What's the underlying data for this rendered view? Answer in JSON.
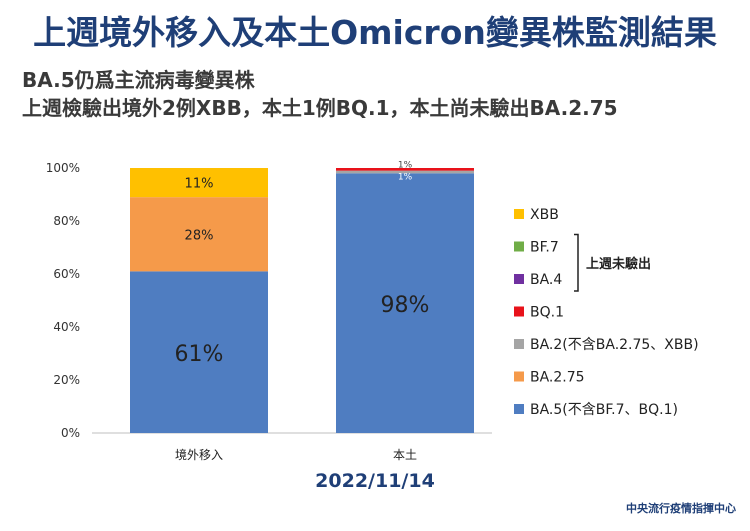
{
  "title": "上週境外移入及本土Omicron變異株監測結果",
  "subtitle_lines": [
    "BA.5仍爲主流病毒變異株",
    "上週檢驗出境外2例XBB，本土1例BQ.1，本土尚未驗出BA.2.75"
  ],
  "footer": {
    "date": "2022/11/14",
    "org": "中央流行疫情指揮中心"
  },
  "chart_data": {
    "type": "bar",
    "stacked": true,
    "categories": [
      "境外移入",
      "本土"
    ],
    "ylim": [
      0,
      100
    ],
    "yticks": [
      "0%",
      "20%",
      "40%",
      "60%",
      "80%",
      "100%"
    ],
    "series": [
      {
        "name": "BA.5(不含BF.7、BQ.1)",
        "color": "#4f7dc1",
        "values": [
          61,
          98
        ],
        "labels": [
          "61%",
          "98%"
        ]
      },
      {
        "name": "BA.2.75",
        "color": "#f59a4a",
        "values": [
          28,
          0
        ],
        "labels": [
          "28%",
          ""
        ]
      },
      {
        "name": "BA.2(不含BA.2.75、XBB)",
        "color": "#a5a5a5",
        "values": [
          0,
          1
        ],
        "labels": [
          "",
          "1%"
        ]
      },
      {
        "name": "BQ.1",
        "color": "#e8121a",
        "values": [
          0,
          1
        ],
        "labels": [
          "",
          "1%"
        ]
      },
      {
        "name": "BA.4",
        "color": "#7030a0",
        "values": [
          0,
          0
        ],
        "labels": [
          "",
          ""
        ]
      },
      {
        "name": "BF.7",
        "color": "#70ad47",
        "values": [
          0,
          0
        ],
        "labels": [
          "",
          ""
        ]
      },
      {
        "name": "XBB",
        "color": "#ffc000",
        "values": [
          11,
          0
        ],
        "labels": [
          "11%",
          ""
        ]
      }
    ],
    "legend_order": [
      "XBB",
      "BF.7",
      "BA.4",
      "BQ.1",
      "BA.2(不含BA.2.75、XBB)",
      "BA.2.75",
      "BA.5(不含BF.7、BQ.1)"
    ],
    "legend_placement": "right",
    "bracket_annotation": {
      "text": "上週未驗出",
      "covers": [
        "BF.7",
        "BA.4"
      ]
    }
  }
}
